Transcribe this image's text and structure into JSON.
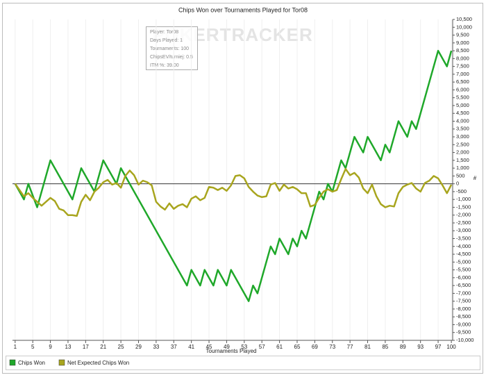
{
  "chart_data": {
    "type": "line",
    "title": "Chips Won over Tournaments Played for Tor08",
    "xlabel": "Tournaments Played",
    "ylabel": "#",
    "watermark": "POKERTRACKER",
    "info": [
      "Player: Tor08",
      "Days Played: 1",
      "Tournaments: 100",
      "ChipsEV/turniej: 0.5",
      "ITM %: 39.00"
    ],
    "xlim": [
      0.4,
      100.3
    ],
    "ylim": [
      -10000,
      10500
    ],
    "xticks": [
      1,
      5,
      9,
      13,
      17,
      21,
      25,
      29,
      33,
      37,
      41,
      45,
      49,
      53,
      57,
      61,
      65,
      69,
      73,
      77,
      81,
      85,
      89,
      93,
      97,
      100
    ],
    "yticks": [
      {
        "value": -10000,
        "label": "-10,000"
      },
      {
        "value": -9500,
        "label": "-9,500"
      },
      {
        "value": -9000,
        "label": "-9,000"
      },
      {
        "value": -8500,
        "label": "-8,500"
      },
      {
        "value": -8000,
        "label": "-8,000"
      },
      {
        "value": -7500,
        "label": "-7,500"
      },
      {
        "value": -7000,
        "label": "-7,000"
      },
      {
        "value": -6500,
        "label": "-6,500"
      },
      {
        "value": -6000,
        "label": "-6,000"
      },
      {
        "value": -5500,
        "label": "-5,500"
      },
      {
        "value": -5000,
        "label": "-5,000"
      },
      {
        "value": -4500,
        "label": "-4,500"
      },
      {
        "value": -4000,
        "label": "-4,000"
      },
      {
        "value": -3500,
        "label": "-3,500"
      },
      {
        "value": -3000,
        "label": "-3,000"
      },
      {
        "value": -2500,
        "label": "-2,500"
      },
      {
        "value": -2000,
        "label": "-2,000"
      },
      {
        "value": -1500,
        "label": "-1,500"
      },
      {
        "value": -1000,
        "label": "-1,000"
      },
      -500,
      0,
      500,
      {
        "value": 1000,
        "label": "1,000"
      },
      {
        "value": 1500,
        "label": "1,500"
      },
      {
        "value": 2000,
        "label": "2,000"
      },
      {
        "value": 2500,
        "label": "2,500"
      },
      {
        "value": 3000,
        "label": "3,000"
      },
      {
        "value": 3500,
        "label": "3,500"
      },
      {
        "value": 4000,
        "label": "4,000"
      },
      {
        "value": 4500,
        "label": "4,500"
      },
      {
        "value": 5000,
        "label": "5,000"
      },
      {
        "value": 5500,
        "label": "5,500"
      },
      {
        "value": 6000,
        "label": "6,000"
      },
      {
        "value": 6500,
        "label": "6,500"
      },
      {
        "value": 7000,
        "label": "7,000"
      },
      {
        "value": 7500,
        "label": "7,500"
      },
      {
        "value": 8000,
        "label": "8,000"
      },
      {
        "value": 8500,
        "label": "8,500"
      },
      {
        "value": 9000,
        "label": "9,000"
      },
      {
        "value": 9500,
        "label": "9,500"
      },
      {
        "value": 10000,
        "label": "10,000"
      },
      {
        "value": 10500,
        "label": "10,500"
      }
    ],
    "grid": true,
    "series": [
      {
        "name": "Chips Won",
        "color": "#1fa82a",
        "x": [
          1,
          3,
          4,
          6,
          9,
          14,
          16,
          19,
          21,
          24,
          25,
          40,
          41,
          43,
          44,
          46,
          47,
          49,
          50,
          54,
          55,
          56,
          59,
          60,
          61,
          63,
          64,
          65,
          66,
          67,
          70,
          71,
          72,
          73,
          75,
          76,
          78,
          80,
          81,
          84,
          85,
          86,
          88,
          90,
          91,
          92,
          97,
          99,
          100
        ],
        "values": [
          0,
          -1000,
          0,
          -1500,
          1500,
          -1000,
          1000,
          -500,
          1500,
          0,
          1000,
          -6500,
          -5500,
          -6500,
          -5500,
          -6500,
          -5500,
          -6500,
          -5500,
          -7500,
          -6500,
          -7000,
          -4000,
          -4500,
          -3500,
          -4500,
          -3500,
          -4000,
          -3000,
          -3500,
          -500,
          -1000,
          0,
          -500,
          1500,
          1000,
          3000,
          2000,
          3000,
          1500,
          2500,
          2000,
          4000,
          3000,
          4000,
          3500,
          8500,
          7500,
          8500
        ]
      },
      {
        "name": "Net Expected Chips Won",
        "color": "#a8a51e",
        "x": [
          1,
          3,
          4,
          5,
          7,
          9,
          10,
          11,
          12,
          13,
          14,
          15,
          16,
          17,
          18,
          19,
          20,
          21,
          22,
          23,
          24,
          25,
          26,
          27,
          28,
          29,
          30,
          31,
          32,
          33,
          34,
          35,
          36,
          37,
          38,
          39,
          40,
          41,
          42,
          43,
          44,
          45,
          46,
          47,
          48,
          49,
          50,
          51,
          52,
          53,
          54,
          55,
          56,
          57,
          58,
          59,
          60,
          61,
          62,
          63,
          64,
          65,
          66,
          67,
          68,
          69,
          70,
          71,
          72,
          73,
          74,
          75,
          76,
          77,
          78,
          79,
          80,
          81,
          82,
          83,
          84,
          85,
          86,
          87,
          88,
          89,
          90,
          91,
          92,
          93,
          94,
          95,
          96,
          97,
          98,
          99,
          100
        ],
        "values": [
          0,
          -800,
          -600,
          -900,
          -1400,
          -900,
          -1100,
          -1600,
          -1700,
          -2000,
          -2000,
          -2050,
          -1150,
          -700,
          -1050,
          -500,
          -250,
          100,
          250,
          -50,
          50,
          -250,
          500,
          850,
          550,
          -50,
          200,
          100,
          -100,
          -1150,
          -1450,
          -1650,
          -1250,
          -1600,
          -1400,
          -1300,
          -1500,
          -950,
          -800,
          -1050,
          -900,
          -200,
          -250,
          -400,
          -250,
          -450,
          -100,
          500,
          550,
          350,
          -200,
          -500,
          -750,
          -850,
          -800,
          -50,
          50,
          -450,
          -50,
          -300,
          -200,
          -350,
          -600,
          -600,
          -1450,
          -1350,
          -900,
          -500,
          -350,
          -500,
          -400,
          300,
          950,
          550,
          700,
          400,
          -300,
          -600,
          -50,
          -800,
          -1300,
          -1500,
          -1400,
          -1450,
          -600,
          -200,
          -50,
          50,
          -300,
          -500,
          50,
          200,
          500,
          350,
          -100,
          -600,
          -50
        ]
      }
    ]
  }
}
